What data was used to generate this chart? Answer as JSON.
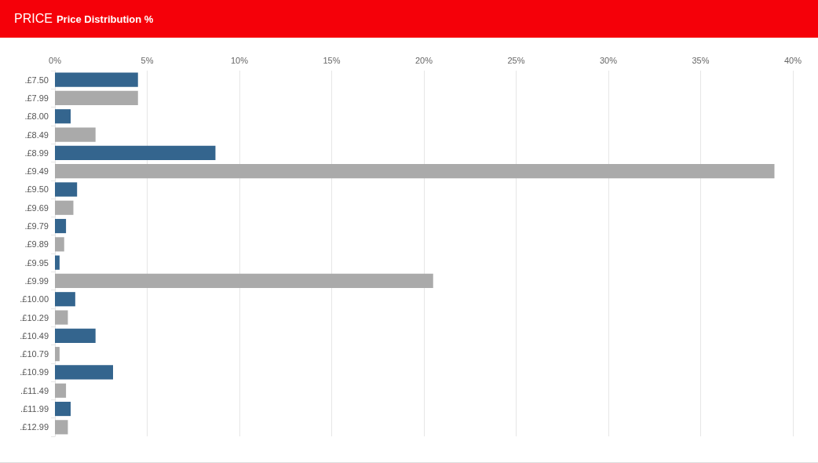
{
  "chart_data": {
    "type": "bar",
    "orientation": "horizontal",
    "title": "PRICE",
    "subtitle": "Price Distribution %",
    "categories": [
      ".£7.50",
      ".£7.99",
      ".£8.00",
      ".£8.49",
      ".£8.99",
      ".£9.49",
      ".£9.50",
      ".£9.69",
      ".£9.79",
      ".£9.89",
      ".£9.95",
      ".£9.99",
      ".£10.00",
      ".£10.29",
      ".£10.49",
      ".£10.79",
      ".£10.99",
      ".£11.49",
      ".£11.99",
      ".£12.99"
    ],
    "values": [
      4.5,
      4.5,
      0.85,
      2.2,
      8.7,
      39.0,
      1.2,
      1.0,
      0.6,
      0.5,
      0.25,
      20.5,
      1.1,
      0.7,
      2.2,
      0.25,
      3.15,
      0.6,
      0.85,
      0.7
    ],
    "colors": [
      "#34658e",
      "#aaaaaa",
      "#34658e",
      "#aaaaaa",
      "#34658e",
      "#aaaaaa",
      "#34658e",
      "#aaaaaa",
      "#34658e",
      "#aaaaaa",
      "#34658e",
      "#aaaaaa",
      "#34658e",
      "#aaaaaa",
      "#34658e",
      "#aaaaaa",
      "#34658e",
      "#aaaaaa",
      "#34658e",
      "#aaaaaa"
    ],
    "xlim": [
      0,
      40
    ],
    "xticks": [
      {
        "value": 0,
        "label": "0%"
      },
      {
        "value": 5,
        "label": "5%"
      },
      {
        "value": 10,
        "label": "10%"
      },
      {
        "value": 15,
        "label": "15%"
      },
      {
        "value": 20,
        "label": "20%"
      },
      {
        "value": 25,
        "label": "25%"
      },
      {
        "value": 30,
        "label": "30%"
      },
      {
        "value": 35,
        "label": "35%"
      },
      {
        "value": 40,
        "label": "40%"
      }
    ],
    "grid": "x"
  }
}
